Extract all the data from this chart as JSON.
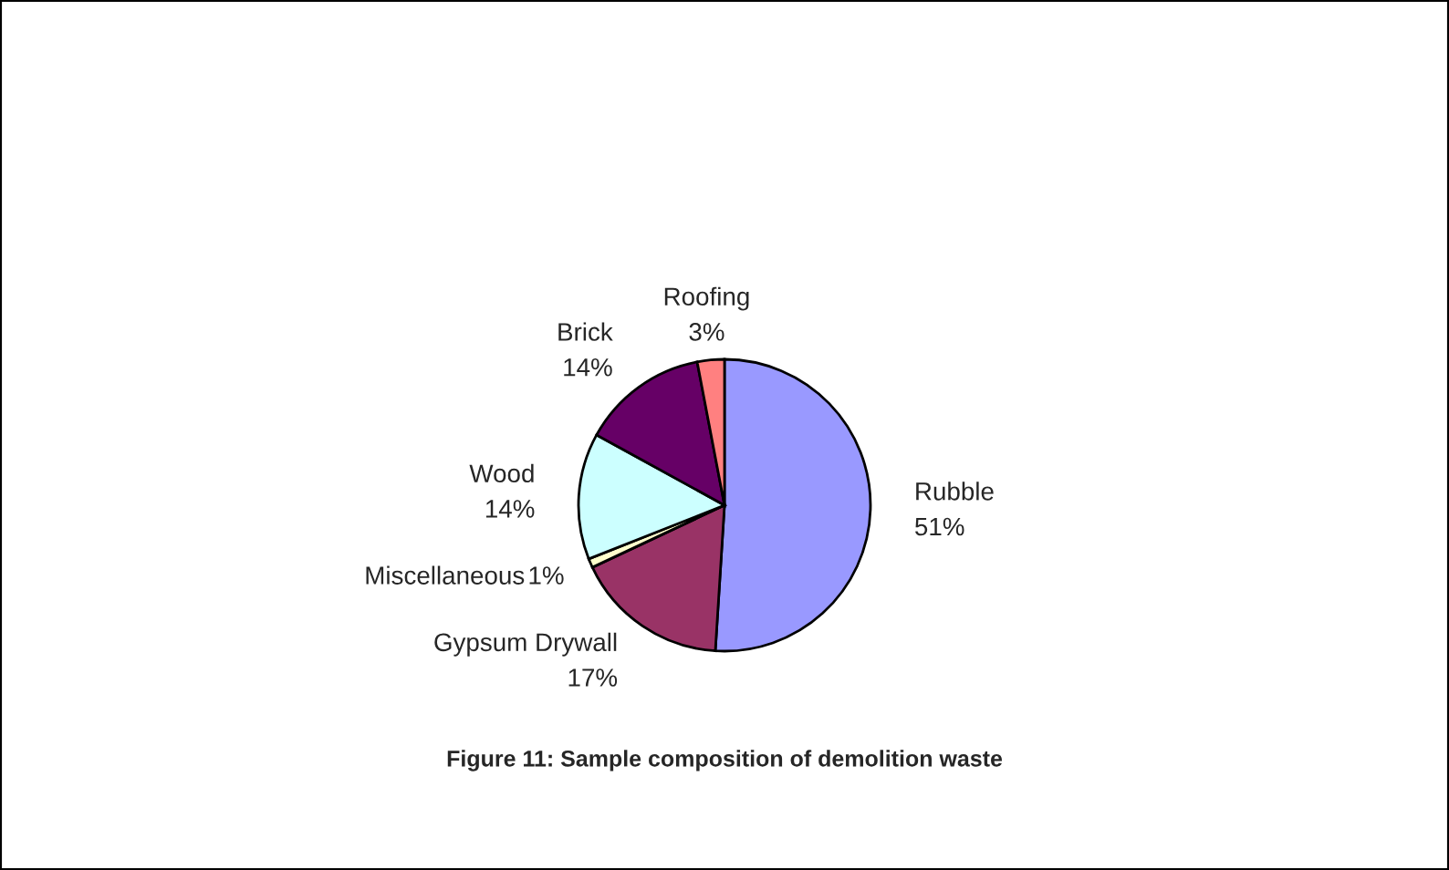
{
  "chart_data": {
    "type": "pie",
    "categories": [
      "Rubble",
      "Gypsum Drywall",
      "Miscellaneous",
      "Wood",
      "Brick",
      "Roofing"
    ],
    "values": [
      51,
      17,
      1,
      14,
      14,
      3
    ],
    "colors": [
      "#9999ff",
      "#993366",
      "#ffffcc",
      "#ccffff",
      "#660066",
      "#ff8080"
    ],
    "value_labels": [
      "51%",
      "17%",
      "1%",
      "14%",
      "14%",
      "3%"
    ],
    "legend": false,
    "annotations": [
      "Figure 11: Sample composition of demolition waste"
    ]
  }
}
